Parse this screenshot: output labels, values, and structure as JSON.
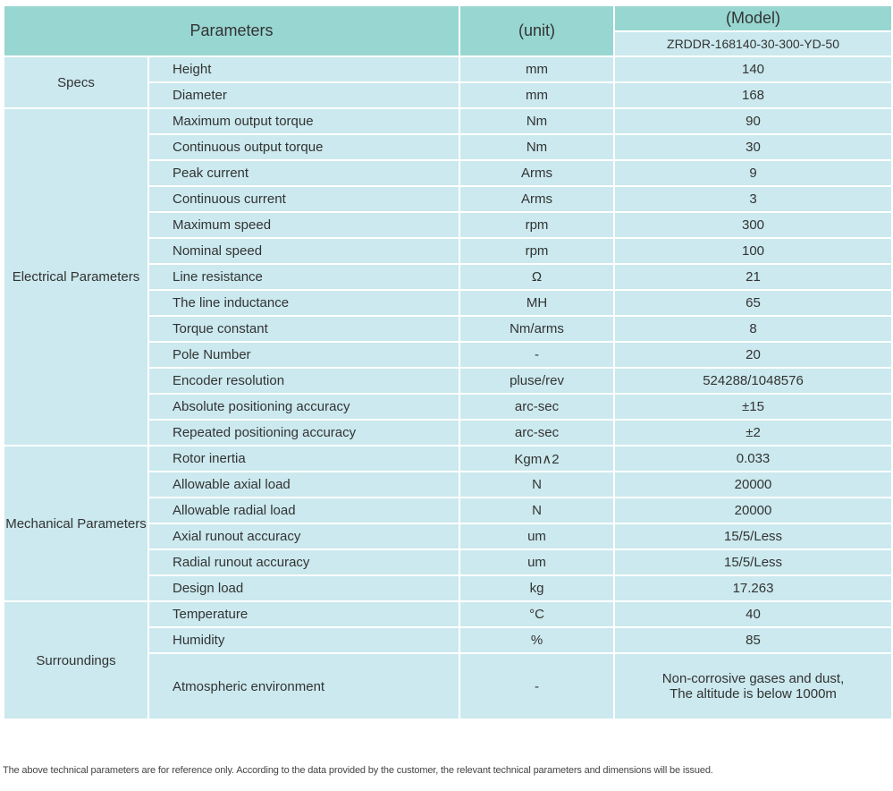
{
  "header": {
    "parameters": "Parameters",
    "unit": "(unit)",
    "model_label": "(Model)",
    "model": "ZRDDR-168140-30-300-YD-50"
  },
  "groups": [
    {
      "name": "Specs",
      "rows": [
        [
          "Height",
          "mm",
          "140"
        ],
        [
          "Diameter",
          "mm",
          "168"
        ]
      ]
    },
    {
      "name": "Electrical Parameters",
      "rows": [
        [
          "Maximum output torque",
          "Nm",
          "90"
        ],
        [
          "Continuous output torque",
          "Nm",
          "30"
        ],
        [
          "Peak current",
          "Arms",
          "9"
        ],
        [
          "Continuous current",
          "Arms",
          "3"
        ],
        [
          "Maximum speed",
          "rpm",
          "300"
        ],
        [
          "Nominal speed",
          "rpm",
          "100"
        ],
        [
          "Line resistance",
          "Ω",
          "21"
        ],
        [
          "The line inductance",
          "MH",
          "65"
        ],
        [
          "Torque constant",
          "Nm/arms",
          "8"
        ],
        [
          "Pole Number",
          "-",
          "20"
        ],
        [
          "Encoder resolution",
          "pluse/rev",
          "524288/1048576"
        ],
        [
          "Absolute positioning accuracy",
          "arc-sec",
          "±15"
        ],
        [
          "Repeated positioning accuracy",
          "arc-sec",
          "±2"
        ]
      ]
    },
    {
      "name": "Mechanical Parameters",
      "rows": [
        [
          "Rotor inertia",
          "Kgm∧2",
          "0.033"
        ],
        [
          "Allowable axial load",
          "N",
          "20000"
        ],
        [
          "Allowable radial load",
          "N",
          "20000"
        ],
        [
          "Axial runout accuracy",
          "um",
          "15/5/Less"
        ],
        [
          "Radial runout accuracy",
          "um",
          "15/5/Less"
        ],
        [
          "Design load",
          "kg",
          "17.263"
        ]
      ]
    },
    {
      "name": "Surroundings",
      "rows": [
        [
          "Temperature",
          "°C",
          "40"
        ],
        [
          "Humidity",
          "%",
          "85"
        ],
        [
          "Atmospheric environment",
          "-",
          [
            "Non-corrosive gases and dust,",
            "The altitude is below 1000m"
          ]
        ]
      ]
    }
  ],
  "footnote": "The above technical parameters are for reference only. According to the data provided by the customer, the relevant technical parameters and dimensions will be issued."
}
